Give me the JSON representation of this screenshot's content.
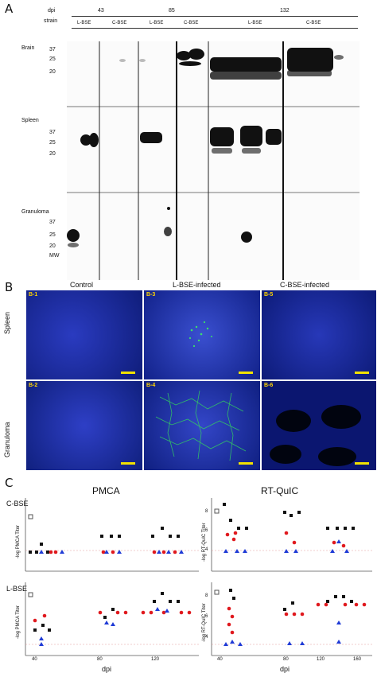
{
  "panelA": {
    "letter": "A",
    "row_dpi": "dpi",
    "row_strain": "strain",
    "groups": [
      {
        "dpi": "43",
        "strains": [
          "L-BSE",
          "C-BSE"
        ]
      },
      {
        "dpi": "85",
        "strains": [
          "L-BSE",
          "C-BSE"
        ]
      },
      {
        "dpi": "132",
        "strains": [
          "L-BSE",
          "C-BSE"
        ]
      }
    ],
    "tissues": [
      "Brain",
      "Spleen",
      "Granuloma"
    ],
    "mw_markers": [
      "37",
      "25",
      "20"
    ],
    "mw_label": "MW"
  },
  "panelB": {
    "letter": "B",
    "columns": [
      "Control",
      "L-BSE-infected",
      "C-BSE-infected"
    ],
    "rows": [
      "Spleen",
      "Granuloma"
    ],
    "tiles": [
      "B-1",
      "B-3",
      "B-5",
      "B-2",
      "B-4",
      "B-6"
    ]
  },
  "panelC": {
    "letter": "C",
    "col_titles": [
      "PMCA",
      "RT-QuIC"
    ],
    "row_labels": [
      "C-BSE",
      "L-BSE"
    ],
    "ylabels": [
      "-log PMCA Titer",
      "-log RT-QuIC Titer"
    ],
    "xlabel": "dpi",
    "xticks": [
      "40",
      "80",
      "120",
      "160"
    ],
    "yticks": [
      "8",
      "6",
      "4"
    ]
  },
  "chart_data": [
    {
      "type": "scatter",
      "title": "PMCA",
      "ylabel": "-log PMCA Titer",
      "xlabel": "",
      "series": [
        {
          "name": "",
          "x": [
            40,
            40,
            44,
            44,
            48,
            80,
            84,
            88,
            120,
            124,
            128
          ],
          "y": [
            6,
            1,
            2,
            1,
            1,
            3,
            3,
            3,
            4,
            3,
            3
          ]
        }
      ]
    },
    {
      "type": "scatter",
      "title": "RT-QuIC",
      "ylabel": "-log RT-QuIC Titer",
      "xlabel": "",
      "series": [
        {
          "name": "",
          "x": [
            40,
            44,
            48,
            52,
            80,
            84,
            88,
            120,
            124,
            128
          ],
          "y": [
            9,
            8,
            7,
            7,
            8,
            8,
            7,
            7,
            7,
            7
          ]
        }
      ]
    }
  ],
  "colors": {
    "square": "#111111",
    "circle": "#e0191e",
    "triangle": "#1f3bd6",
    "micro_bg": "#1b2fb0",
    "green": "#2ed15a"
  }
}
